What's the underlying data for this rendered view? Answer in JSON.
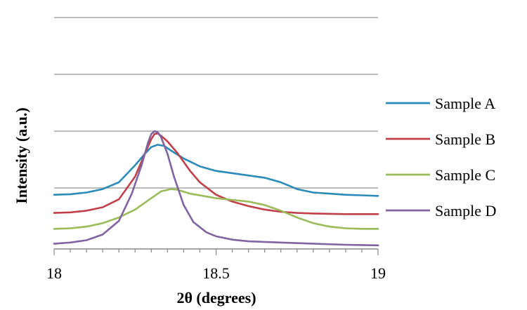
{
  "chart_data": {
    "type": "line",
    "title": "",
    "xlabel": "2θ (degrees)",
    "ylabel": "Intensity (a.u.)",
    "xlim": [
      18,
      19
    ],
    "ylim": [
      0,
      4
    ],
    "x_ticks": [
      18,
      18.5,
      19
    ],
    "x_tick_labels": [
      "18",
      "18.5",
      "19"
    ],
    "y_gridlines": [
      1,
      2,
      3,
      4
    ],
    "y_tick_labels_shown": false,
    "grid": "horizontal",
    "legend_position": "right",
    "series": [
      {
        "name": "Sample A",
        "color": "#2a8ab8",
        "points": [
          [
            18.0,
            0.88
          ],
          [
            18.05,
            0.89
          ],
          [
            18.1,
            0.92
          ],
          [
            18.15,
            0.98
          ],
          [
            18.2,
            1.1
          ],
          [
            18.25,
            1.4
          ],
          [
            18.28,
            1.6
          ],
          [
            18.3,
            1.72
          ],
          [
            18.32,
            1.76
          ],
          [
            18.34,
            1.74
          ],
          [
            18.36,
            1.66
          ],
          [
            18.4,
            1.52
          ],
          [
            18.45,
            1.38
          ],
          [
            18.5,
            1.3
          ],
          [
            18.55,
            1.26
          ],
          [
            18.6,
            1.22
          ],
          [
            18.65,
            1.18
          ],
          [
            18.7,
            1.1
          ],
          [
            18.75,
            0.98
          ],
          [
            18.8,
            0.92
          ],
          [
            18.85,
            0.9
          ],
          [
            18.9,
            0.88
          ],
          [
            18.95,
            0.87
          ],
          [
            19.0,
            0.86
          ]
        ]
      },
      {
        "name": "Sample B",
        "color": "#c0404a",
        "points": [
          [
            18.0,
            0.56
          ],
          [
            18.05,
            0.57
          ],
          [
            18.1,
            0.6
          ],
          [
            18.15,
            0.66
          ],
          [
            18.2,
            0.8
          ],
          [
            18.25,
            1.2
          ],
          [
            18.28,
            1.6
          ],
          [
            18.3,
            1.86
          ],
          [
            18.31,
            1.95
          ],
          [
            18.32,
            1.96
          ],
          [
            18.33,
            1.92
          ],
          [
            18.35,
            1.82
          ],
          [
            18.38,
            1.62
          ],
          [
            18.42,
            1.3
          ],
          [
            18.45,
            1.1
          ],
          [
            18.5,
            0.88
          ],
          [
            18.55,
            0.76
          ],
          [
            18.6,
            0.68
          ],
          [
            18.65,
            0.62
          ],
          [
            18.7,
            0.58
          ],
          [
            18.75,
            0.56
          ],
          [
            18.8,
            0.55
          ],
          [
            18.9,
            0.54
          ],
          [
            19.0,
            0.54
          ]
        ]
      },
      {
        "name": "Sample C",
        "color": "#9bbb59",
        "points": [
          [
            18.0,
            0.28
          ],
          [
            18.05,
            0.29
          ],
          [
            18.1,
            0.32
          ],
          [
            18.15,
            0.38
          ],
          [
            18.2,
            0.48
          ],
          [
            18.25,
            0.62
          ],
          [
            18.3,
            0.82
          ],
          [
            18.33,
            0.94
          ],
          [
            18.36,
            0.98
          ],
          [
            18.38,
            0.97
          ],
          [
            18.42,
            0.9
          ],
          [
            18.46,
            0.86
          ],
          [
            18.5,
            0.82
          ],
          [
            18.55,
            0.79
          ],
          [
            18.6,
            0.76
          ],
          [
            18.65,
            0.7
          ],
          [
            18.7,
            0.6
          ],
          [
            18.75,
            0.48
          ],
          [
            18.8,
            0.38
          ],
          [
            18.85,
            0.32
          ],
          [
            18.9,
            0.29
          ],
          [
            18.95,
            0.28
          ],
          [
            19.0,
            0.28
          ]
        ]
      },
      {
        "name": "Sample D",
        "color": "#8064a2",
        "points": [
          [
            18.0,
            0.02
          ],
          [
            18.05,
            0.04
          ],
          [
            18.1,
            0.08
          ],
          [
            18.15,
            0.18
          ],
          [
            18.2,
            0.42
          ],
          [
            18.24,
            0.9
          ],
          [
            18.27,
            1.4
          ],
          [
            18.29,
            1.8
          ],
          [
            18.3,
            1.95
          ],
          [
            18.31,
            2.0
          ],
          [
            18.32,
            1.98
          ],
          [
            18.33,
            1.9
          ],
          [
            18.35,
            1.6
          ],
          [
            18.37,
            1.2
          ],
          [
            18.4,
            0.7
          ],
          [
            18.43,
            0.4
          ],
          [
            18.47,
            0.22
          ],
          [
            18.5,
            0.15
          ],
          [
            18.55,
            0.09
          ],
          [
            18.6,
            0.06
          ],
          [
            18.7,
            0.04
          ],
          [
            18.8,
            0.02
          ],
          [
            18.9,
            0.0
          ],
          [
            19.0,
            -0.01
          ]
        ]
      }
    ]
  }
}
